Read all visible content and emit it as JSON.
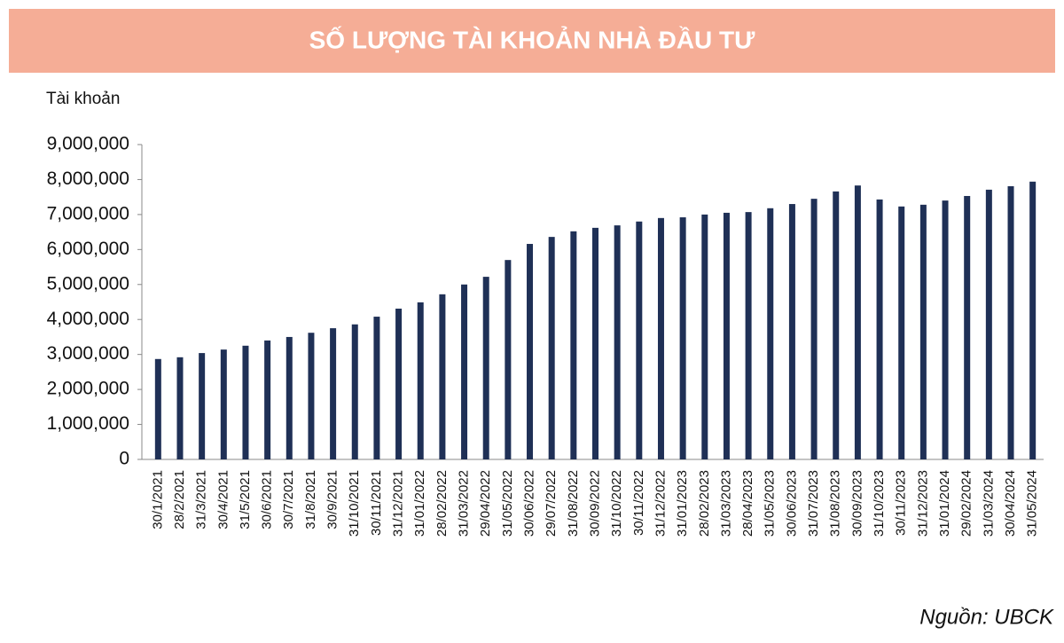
{
  "chart_data": {
    "type": "bar",
    "title": "SỐ LƯỢNG TÀI KHOẢN NHÀ ĐẦU TƯ",
    "y_label": "Tài khoản",
    "source": "Nguồn: UBCK",
    "categories": [
      "30/1/2021",
      "28/2/2021",
      "31/3/2021",
      "30/4/2021",
      "31/5/2021",
      "30/6/2021",
      "30/7/2021",
      "31/8/2021",
      "30/9/2021",
      "31/10/2021",
      "30/11/2021",
      "31/12/2021",
      "31/01/2022",
      "28/02/2022",
      "31/03/2022",
      "29/04/2022",
      "31/05/2022",
      "30/06/2022",
      "29/07/2022",
      "31/08/2022",
      "30/09/2022",
      "31/10/2022",
      "30/11/2022",
      "31/12/2022",
      "31/01/2023",
      "28/02/2023",
      "31/03/2023",
      "28/04/2023",
      "31/05/2023",
      "30/06/2023",
      "31/07/2023",
      "31/08/2023",
      "30/09/2023",
      "31/10/2023",
      "30/11/2023",
      "31/12/2023",
      "31/01/2024",
      "29/02/2024",
      "31/03/2024",
      "30/04/2024",
      "31/05/2024"
    ],
    "values": [
      2870000,
      2920000,
      3040000,
      3140000,
      3250000,
      3400000,
      3500000,
      3620000,
      3750000,
      3860000,
      4080000,
      4310000,
      4490000,
      4720000,
      5000000,
      5220000,
      5700000,
      6160000,
      6360000,
      6520000,
      6620000,
      6690000,
      6800000,
      6900000,
      6920000,
      7000000,
      7050000,
      7070000,
      7180000,
      7300000,
      7450000,
      7660000,
      7830000,
      7430000,
      7230000,
      7280000,
      7400000,
      7530000,
      7710000,
      7810000,
      7940000
    ],
    "color": "#1f3056",
    "ylim": [
      0,
      9000000
    ],
    "yticks": [
      0,
      {
        "value": 1000000,
        "label": "1,000,000"
      },
      {
        "value": 2000000,
        "label": "2,000,000"
      },
      {
        "value": 3000000,
        "label": "3,000,000"
      },
      {
        "value": 4000000,
        "label": "4,000,000"
      },
      {
        "value": 5000000,
        "label": "5,000,000"
      },
      {
        "value": 6000000,
        "label": "6,000,000"
      },
      {
        "value": 7000000,
        "label": "7,000,000"
      },
      {
        "value": 8000000,
        "label": "8,000,000"
      },
      {
        "value": 9000000,
        "label": "9,000,000"
      }
    ],
    "grid": false
  }
}
